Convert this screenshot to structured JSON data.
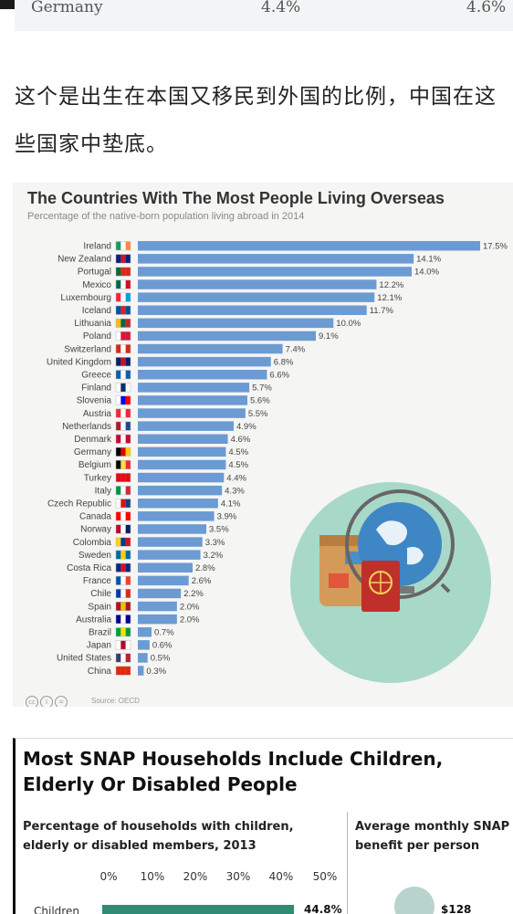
{
  "previous_table": {
    "row_label": "Germany",
    "value1": "4.4%",
    "value2": "4.6%"
  },
  "article": {
    "paragraph": "这个是出生在本国又移民到外国的比例，中国在这些国家中垫底。"
  },
  "chart_data": {
    "type": "bar",
    "orientation": "horizontal",
    "title": "The Countries With The Most People Living Overseas",
    "subtitle": "Percentage of the native-born population living abroad in 2014",
    "source": "Source: OECD",
    "xlim": [
      0,
      17.5
    ],
    "bar_color": "#6b9bd2",
    "categories": [
      "Ireland",
      "New Zealand",
      "Portugal",
      "Mexico",
      "Luxembourg",
      "Iceland",
      "Lithuania",
      "Poland",
      "Switzerland",
      "United Kingdom",
      "Greece",
      "Finland",
      "Slovenia",
      "Austria",
      "Netherlands",
      "Denmark",
      "Germany",
      "Belgium",
      "Turkey",
      "Italy",
      "Czech Republic",
      "Canada",
      "Norway",
      "Colombia",
      "Sweden",
      "Costa Rica",
      "France",
      "Chile",
      "Spain",
      "Australia",
      "Brazil",
      "Japan",
      "United States",
      "China"
    ],
    "values": [
      17.5,
      14.1,
      14.0,
      12.2,
      12.1,
      11.7,
      10.0,
      9.1,
      7.4,
      6.8,
      6.6,
      5.7,
      5.6,
      5.5,
      4.9,
      4.6,
      4.5,
      4.5,
      4.4,
      4.3,
      4.1,
      3.9,
      3.5,
      3.3,
      3.2,
      2.8,
      2.6,
      2.2,
      2.0,
      2.0,
      0.7,
      0.6,
      0.5,
      0.3
    ],
    "labels": [
      "17.5%",
      "14.1%",
      "14.0%",
      "12.2%",
      "12.1%",
      "11.7%",
      "10.0%",
      "9.1%",
      "7.4%",
      "6.8%",
      "6.6%",
      "5.7%",
      "5.6%",
      "5.5%",
      "4.9%",
      "4.6%",
      "4.5%",
      "4.5%",
      "4.4%",
      "4.3%",
      "4.1%",
      "3.9%",
      "3.5%",
      "3.3%",
      "3.2%",
      "2.8%",
      "2.6%",
      "2.2%",
      "2.0%",
      "2.0%",
      "0.7%",
      "0.6%",
      "0.5%",
      "0.3%"
    ],
    "flag_colors": [
      [
        "#169b62",
        "#ffffff",
        "#ff883e"
      ],
      [
        "#00247d",
        "#cc142b",
        "#00247d"
      ],
      [
        "#046a38",
        "#da291c",
        "#da291c"
      ],
      [
        "#006847",
        "#ffffff",
        "#ce1126"
      ],
      [
        "#ed2939",
        "#ffffff",
        "#00a1de"
      ],
      [
        "#02529c",
        "#dc1e35",
        "#02529c"
      ],
      [
        "#fdb913",
        "#006a44",
        "#c1272d"
      ],
      [
        "#ffffff",
        "#dc143c",
        "#dc143c"
      ],
      [
        "#d52b1e",
        "#ffffff",
        "#d52b1e"
      ],
      [
        "#012169",
        "#c8102e",
        "#012169"
      ],
      [
        "#0d5eaf",
        "#ffffff",
        "#0d5eaf"
      ],
      [
        "#ffffff",
        "#002f6c",
        "#ffffff"
      ],
      [
        "#ffffff",
        "#0000ff",
        "#ff0000"
      ],
      [
        "#ed2939",
        "#ffffff",
        "#ed2939"
      ],
      [
        "#ae1c28",
        "#ffffff",
        "#21468b"
      ],
      [
        "#c60c30",
        "#ffffff",
        "#c60c30"
      ],
      [
        "#000000",
        "#dd0000",
        "#ffce00"
      ],
      [
        "#000000",
        "#fae042",
        "#ed2939"
      ],
      [
        "#e30a17",
        "#e30a17",
        "#e30a17"
      ],
      [
        "#009246",
        "#ffffff",
        "#ce2b37"
      ],
      [
        "#ffffff",
        "#d7141a",
        "#11457e"
      ],
      [
        "#ff0000",
        "#ffffff",
        "#ff0000"
      ],
      [
        "#ba0c2f",
        "#ffffff",
        "#00205b"
      ],
      [
        "#fcd116",
        "#003893",
        "#ce1126"
      ],
      [
        "#006aa7",
        "#fecc00",
        "#006aa7"
      ],
      [
        "#002b7f",
        "#ce1126",
        "#002b7f"
      ],
      [
        "#0055a4",
        "#ffffff",
        "#ef4135"
      ],
      [
        "#0039a6",
        "#ffffff",
        "#d52b1e"
      ],
      [
        "#aa151b",
        "#f1bf00",
        "#aa151b"
      ],
      [
        "#00008b",
        "#ffffff",
        "#00008b"
      ],
      [
        "#009c3b",
        "#ffdf00",
        "#009c3b"
      ],
      [
        "#ffffff",
        "#bc002d",
        "#ffffff"
      ],
      [
        "#3c3b6e",
        "#ffffff",
        "#b22234"
      ],
      [
        "#de2910",
        "#de2910",
        "#de2910"
      ]
    ]
  },
  "snap": {
    "title": "Most SNAP Households Include Children, Elderly Or Disabled People",
    "subtitle_left": "Percentage of households with children, elderly or disabled members, 2013",
    "subtitle_right": "Average monthly SNAP benefit per person",
    "axis_ticks": [
      "0%",
      "10%",
      "20%",
      "30%",
      "40%",
      "50%"
    ],
    "row_label": "Children",
    "row_value": "44.8%",
    "benefit_value": "$128",
    "bar_color": "#2e8b74"
  }
}
